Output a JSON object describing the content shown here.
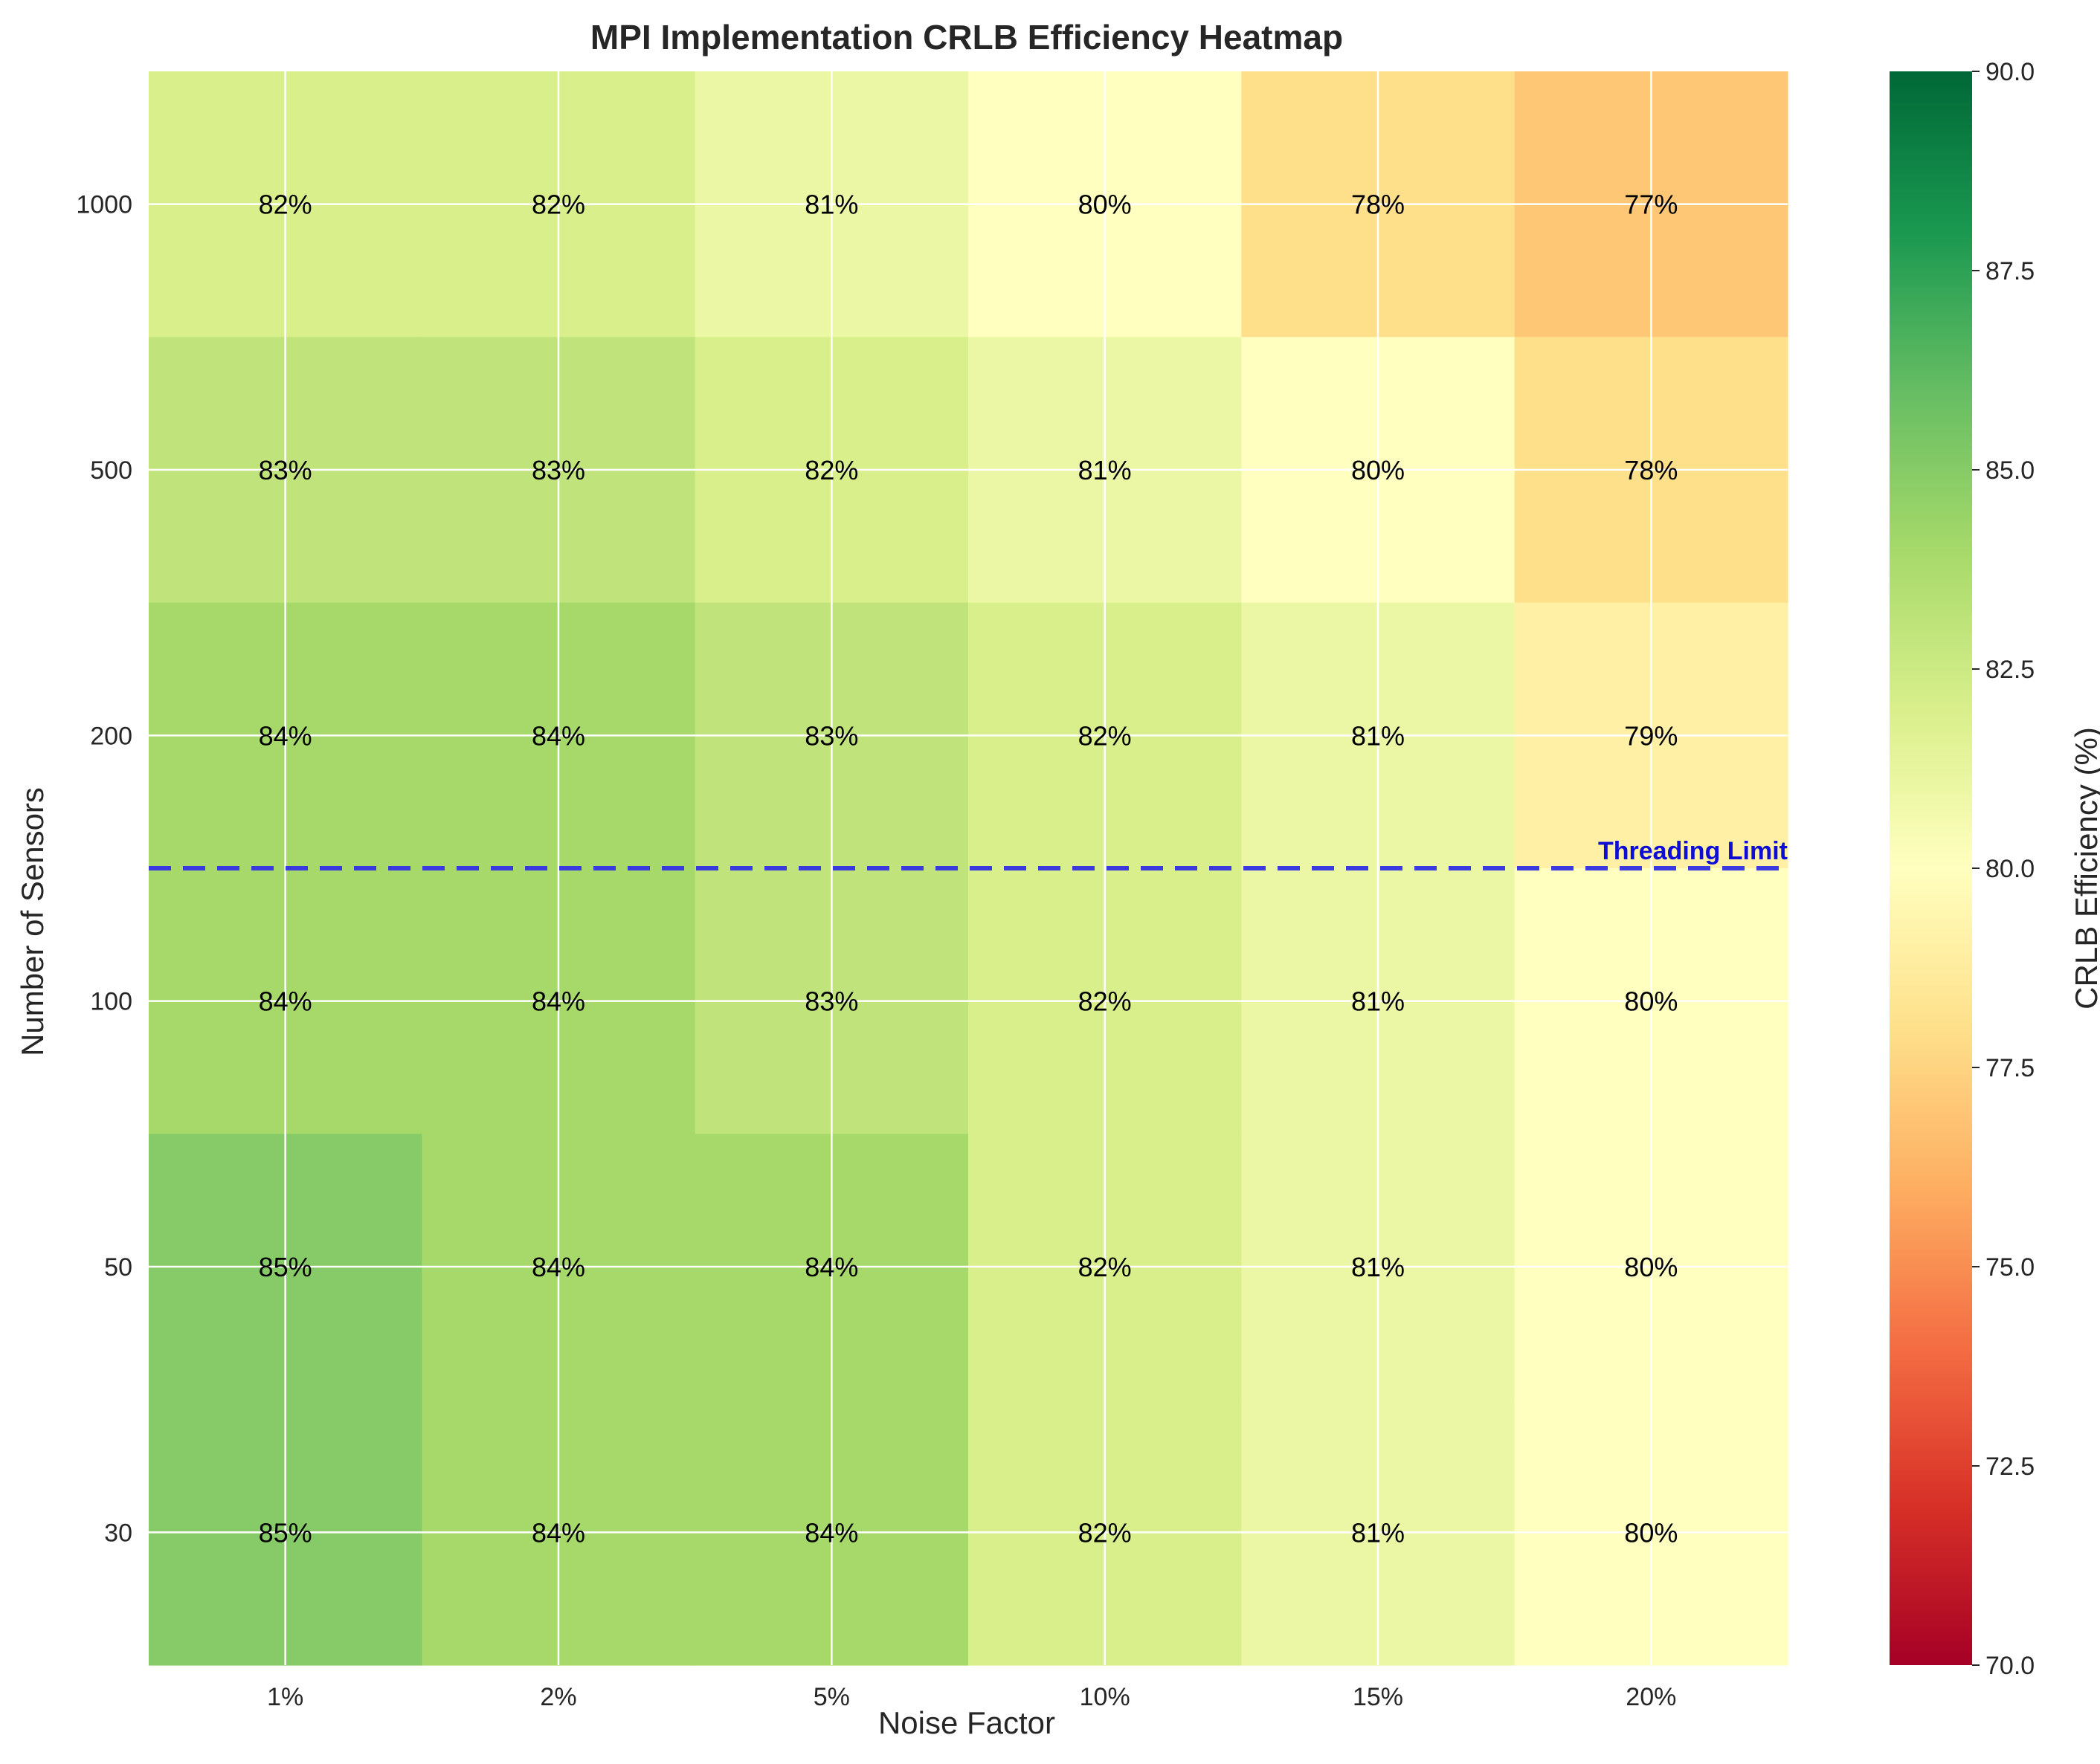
{
  "chart_data": {
    "type": "heatmap",
    "title": "MPI Implementation CRLB Efficiency Heatmap",
    "xlabel": "Noise Factor",
    "ylabel": "Number of Sensors",
    "x_categories": [
      "1%",
      "2%",
      "5%",
      "10%",
      "15%",
      "20%"
    ],
    "y_categories": [
      "1000",
      "500",
      "200",
      "100",
      "50",
      "30"
    ],
    "values": [
      [
        82,
        82,
        81,
        80,
        78,
        77
      ],
      [
        83,
        83,
        82,
        81,
        80,
        78
      ],
      [
        84,
        84,
        83,
        82,
        81,
        79
      ],
      [
        84,
        84,
        83,
        82,
        81,
        80
      ],
      [
        85,
        84,
        84,
        82,
        81,
        80
      ],
      [
        85,
        84,
        84,
        82,
        81,
        80
      ]
    ],
    "cell_label_suffix": "%",
    "colorbar": {
      "label": "CRLB Efficiency (%)",
      "min": 70,
      "max": 90,
      "ticks": [
        "70.0",
        "72.5",
        "75.0",
        "77.5",
        "80.0",
        "82.5",
        "85.0",
        "87.5",
        "90.0"
      ],
      "colormap": "RdYlGn"
    },
    "annotation": {
      "text": "Threading Limit",
      "between_rows": [
        "200",
        "100"
      ],
      "line_style": "dashed",
      "color": "#3a3adf",
      "text_color": "#0d0dd6"
    },
    "grid": true
  }
}
